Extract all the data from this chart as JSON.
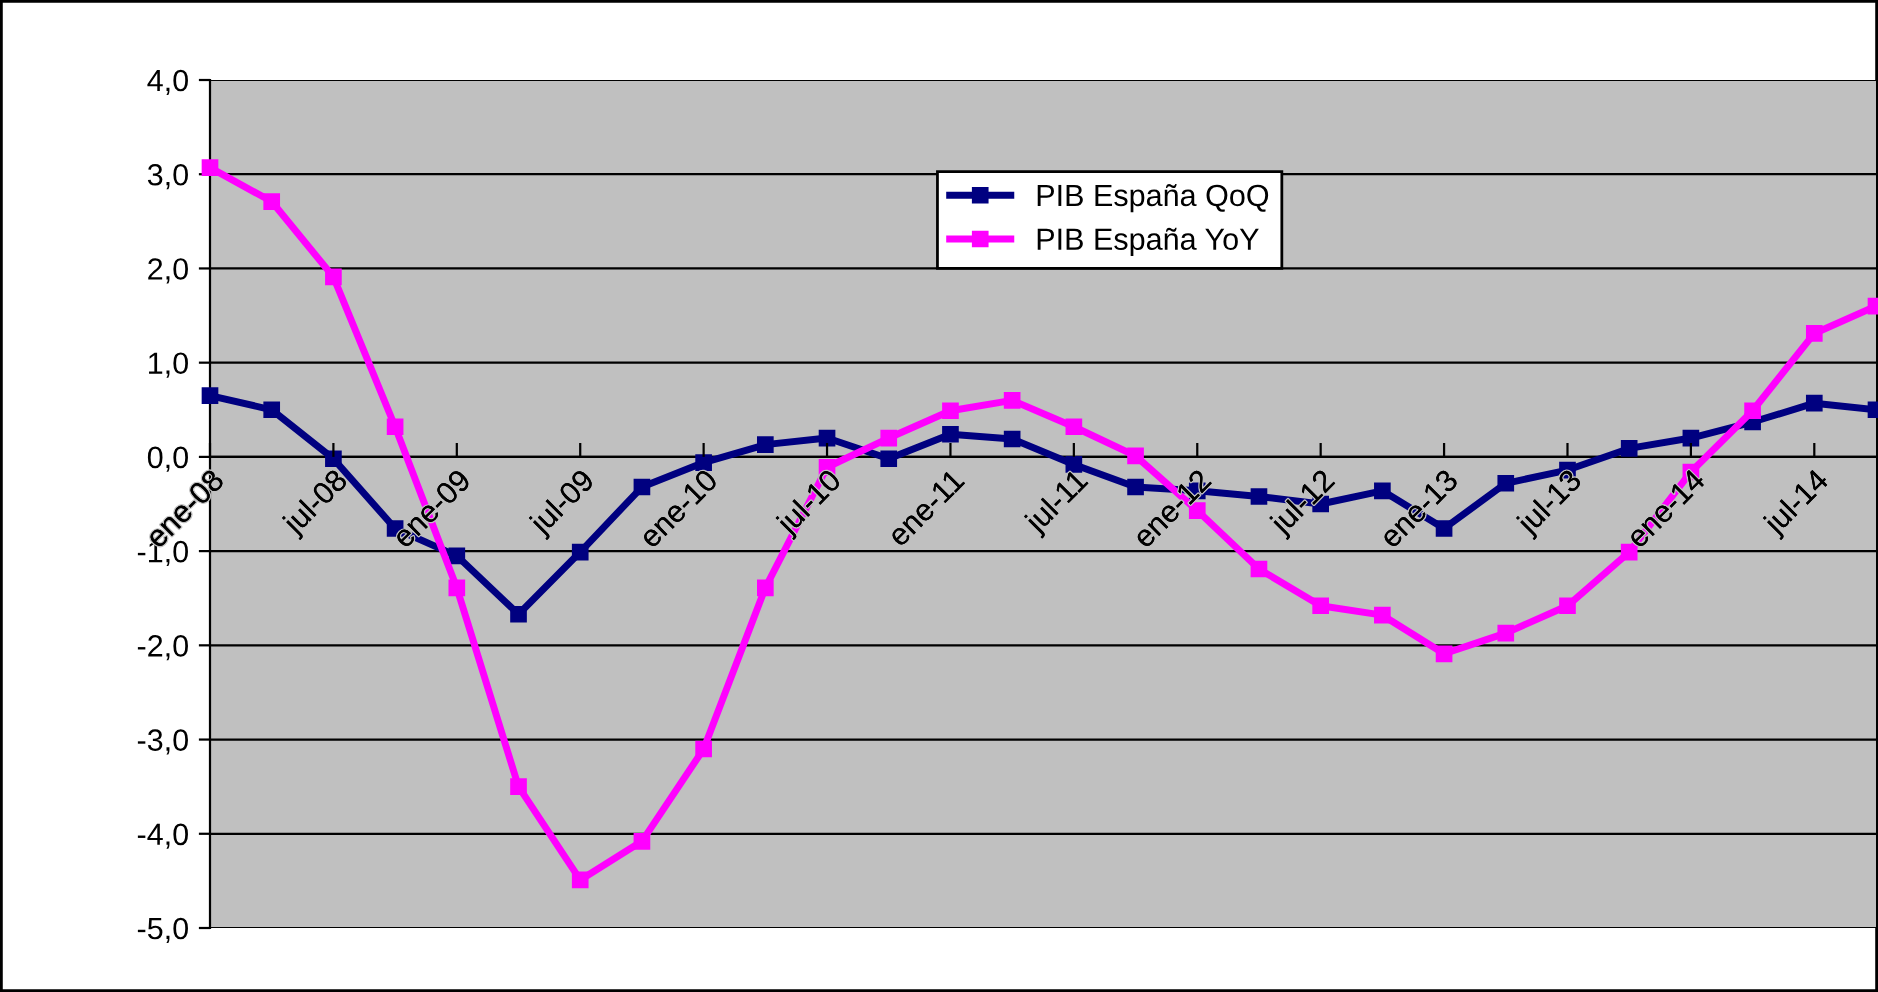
{
  "chart_data": {
    "type": "line",
    "categories": [
      "ene-08",
      null,
      "jul-08",
      null,
      "ene-09",
      null,
      "jul-09",
      null,
      "ene-10",
      null,
      "jul-10",
      null,
      "ene-11",
      null,
      "jul-11",
      null,
      "ene-12",
      null,
      "jul-12",
      null,
      "ene-13",
      null,
      "jul-13",
      null,
      "ene-14",
      null,
      "jul-14",
      null
    ],
    "series": [
      {
        "name": "PIB España QoQ",
        "color": "#000080",
        "values": [
          0.65,
          0.5,
          -0.02,
          -0.76,
          -1.05,
          -1.67,
          -1.01,
          -0.32,
          -0.06,
          0.13,
          0.2,
          -0.02,
          0.24,
          0.19,
          -0.08,
          -0.32,
          -0.36,
          -0.42,
          -0.5,
          -0.36,
          -0.76,
          -0.28,
          -0.14,
          0.09,
          0.2,
          0.37,
          0.57,
          0.5
        ]
      },
      {
        "name": "PIB España YoY",
        "color": "#ff00ff",
        "values": [
          3.07,
          2.71,
          1.91,
          0.32,
          -1.39,
          -3.5,
          -4.49,
          -4.08,
          -3.1,
          -1.39,
          -0.11,
          0.2,
          0.49,
          0.6,
          0.32,
          0.01,
          -0.57,
          -1.19,
          -1.58,
          -1.68,
          -2.09,
          -1.87,
          -1.58,
          -1.01,
          -0.16,
          0.49,
          1.31,
          1.6
        ]
      }
    ],
    "ylim": [
      -5,
      4
    ],
    "yticks": [
      {
        "value": -5,
        "label": "-5,0"
      },
      {
        "value": -4,
        "label": "-4,0"
      },
      {
        "value": -3,
        "label": "-3,0"
      },
      {
        "value": -2,
        "label": "-2,0"
      },
      {
        "value": -1,
        "label": "-1,0"
      },
      {
        "value": 0,
        "label": "0,0"
      },
      {
        "value": 1,
        "label": "1,0"
      },
      {
        "value": 2,
        "label": "2,0"
      },
      {
        "value": 3,
        "label": "3,0"
      },
      {
        "value": 4,
        "label": "4,0"
      }
    ],
    "grid": "y",
    "legend": "top",
    "marker": "square",
    "line_style": "solid"
  }
}
